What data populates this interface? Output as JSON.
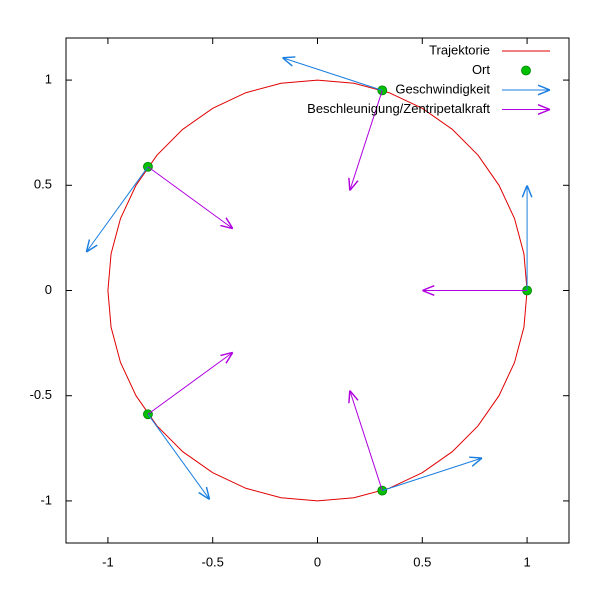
{
  "chart_data": {
    "type": "vector",
    "xlim": [
      -1.2,
      1.2
    ],
    "ylim": [
      -1.2,
      1.2
    ],
    "xticks": [
      -1,
      -0.5,
      0,
      0.5,
      1
    ],
    "yticks": [
      -1,
      -0.5,
      0,
      0.5,
      1
    ],
    "legend": "top-right",
    "series": [
      {
        "name": "Trajektorie",
        "type": "line",
        "color": "#e00000",
        "x": [
          1,
          0.985,
          0.94,
          0.866,
          0.766,
          0.643,
          0.5,
          0.342,
          0.174,
          0,
          -0.174,
          -0.342,
          -0.5,
          -0.643,
          -0.766,
          -0.866,
          -0.94,
          -0.985,
          -1,
          -0.985,
          -0.94,
          -0.866,
          -0.766,
          -0.643,
          -0.5,
          -0.342,
          -0.174,
          0,
          0.174,
          0.342,
          0.5,
          0.643,
          0.766,
          0.866,
          0.94,
          0.985,
          1
        ],
        "y": [
          0,
          0.174,
          0.342,
          0.5,
          0.643,
          0.766,
          0.866,
          0.94,
          0.985,
          1,
          0.985,
          0.94,
          0.866,
          0.766,
          0.643,
          0.5,
          0.342,
          0.174,
          0,
          -0.174,
          -0.342,
          -0.5,
          -0.643,
          -0.766,
          -0.866,
          -0.94,
          -0.985,
          -1,
          -0.985,
          -0.94,
          -0.866,
          -0.766,
          -0.643,
          -0.5,
          -0.342,
          -0.174,
          0
        ]
      },
      {
        "name": "Ort",
        "type": "scatter",
        "color": "#00c000",
        "x": [
          1,
          0.309,
          -0.809,
          -0.809,
          0.309
        ],
        "y": [
          0,
          0.951,
          0.588,
          -0.588,
          -0.951
        ]
      },
      {
        "name": "Geschwindigkeit",
        "type": "vector",
        "color": "#1a7fe0",
        "x": [
          1,
          0.309,
          -0.809,
          -0.809,
          0.309
        ],
        "y": [
          0,
          0.951,
          0.588,
          -0.588,
          -0.951
        ],
        "dx": [
          0,
          -0.476,
          -0.294,
          0.294,
          0.476
        ],
        "dy": [
          0.5,
          0.155,
          -0.405,
          -0.405,
          0.155
        ]
      },
      {
        "name": "Beschleunigung/Zentripetalkraft",
        "type": "vector",
        "color": "#b000e0",
        "x": [
          1,
          0.309,
          -0.809,
          -0.809,
          0.309
        ],
        "y": [
          0,
          0.951,
          0.588,
          -0.588,
          -0.951
        ],
        "dx": [
          -0.5,
          -0.155,
          0.405,
          0.405,
          -0.155
        ],
        "dy": [
          0,
          -0.476,
          -0.294,
          0.294,
          0.476
        ]
      }
    ]
  }
}
